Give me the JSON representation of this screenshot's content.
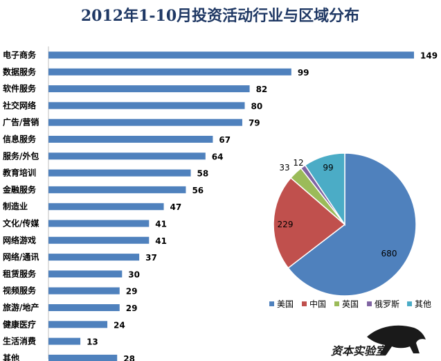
{
  "chart_data": [
    {
      "type": "bar",
      "orientation": "horizontal",
      "title": "2012年1-10月投资活动行业与区域分布",
      "categories": [
        "电子商务",
        "数据服务",
        "软件服务",
        "社交网络",
        "广告/营销",
        "信息服务",
        "服务/外包",
        "教育培训",
        "金融服务",
        "制造业",
        "文化/传媒",
        "网络游戏",
        "网络/通讯",
        "租赁服务",
        "视频服务",
        "旅游/地产",
        "健康医疗",
        "生活消费",
        "其他"
      ],
      "values": [
        149,
        99,
        82,
        80,
        79,
        67,
        64,
        58,
        56,
        47,
        41,
        41,
        37,
        30,
        29,
        29,
        24,
        13,
        28
      ],
      "color": "#4f81bd",
      "xlim": [
        0,
        160
      ],
      "grid": false
    },
    {
      "type": "pie",
      "labels": [
        "美国",
        "中国",
        "英国",
        "俄罗斯",
        "其他"
      ],
      "values": [
        680,
        229,
        33,
        12,
        99
      ],
      "colors": [
        "#4f81bd",
        "#c0504d",
        "#9bbb59",
        "#8064a2",
        "#4bacc6"
      ],
      "legend_position": "bottom"
    }
  ],
  "watermark": {
    "text": "资本实验室"
  }
}
